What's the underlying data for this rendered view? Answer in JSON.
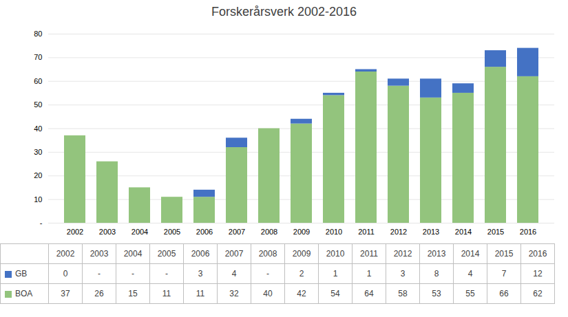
{
  "chart_data": {
    "type": "bar",
    "title": "Forskerårsverk 2002-2016",
    "categories": [
      "2002",
      "2003",
      "2004",
      "2005",
      "2006",
      "2007",
      "2008",
      "2009",
      "2010",
      "2011",
      "2012",
      "2013",
      "2014",
      "2015",
      "2016"
    ],
    "series": [
      {
        "name": "BOA",
        "color": "#93c47d",
        "values": [
          37,
          26,
          15,
          11,
          11,
          32,
          40,
          42,
          54,
          64,
          58,
          53,
          55,
          66,
          62
        ],
        "value_labels": [
          "37",
          "26",
          "15",
          "11",
          "11",
          "32",
          "40",
          "42",
          "54",
          "64",
          "58",
          "53",
          "55",
          "66",
          "62"
        ]
      },
      {
        "name": "GB",
        "color": "#4472c4",
        "values": [
          0,
          0,
          0,
          0,
          3,
          4,
          0,
          2,
          1,
          1,
          3,
          8,
          4,
          7,
          12
        ],
        "value_labels": [
          "0",
          "-",
          "-",
          "-",
          "3",
          "4",
          "-",
          "2",
          "1",
          "1",
          "3",
          "8",
          "4",
          "7",
          "12"
        ]
      }
    ],
    "stacked": true,
    "ylim": [
      0,
      80
    ],
    "yticks": [
      {
        "value": 0,
        "label": "-"
      },
      10,
      20,
      30,
      40,
      50,
      60,
      70,
      80
    ],
    "grid": true
  }
}
